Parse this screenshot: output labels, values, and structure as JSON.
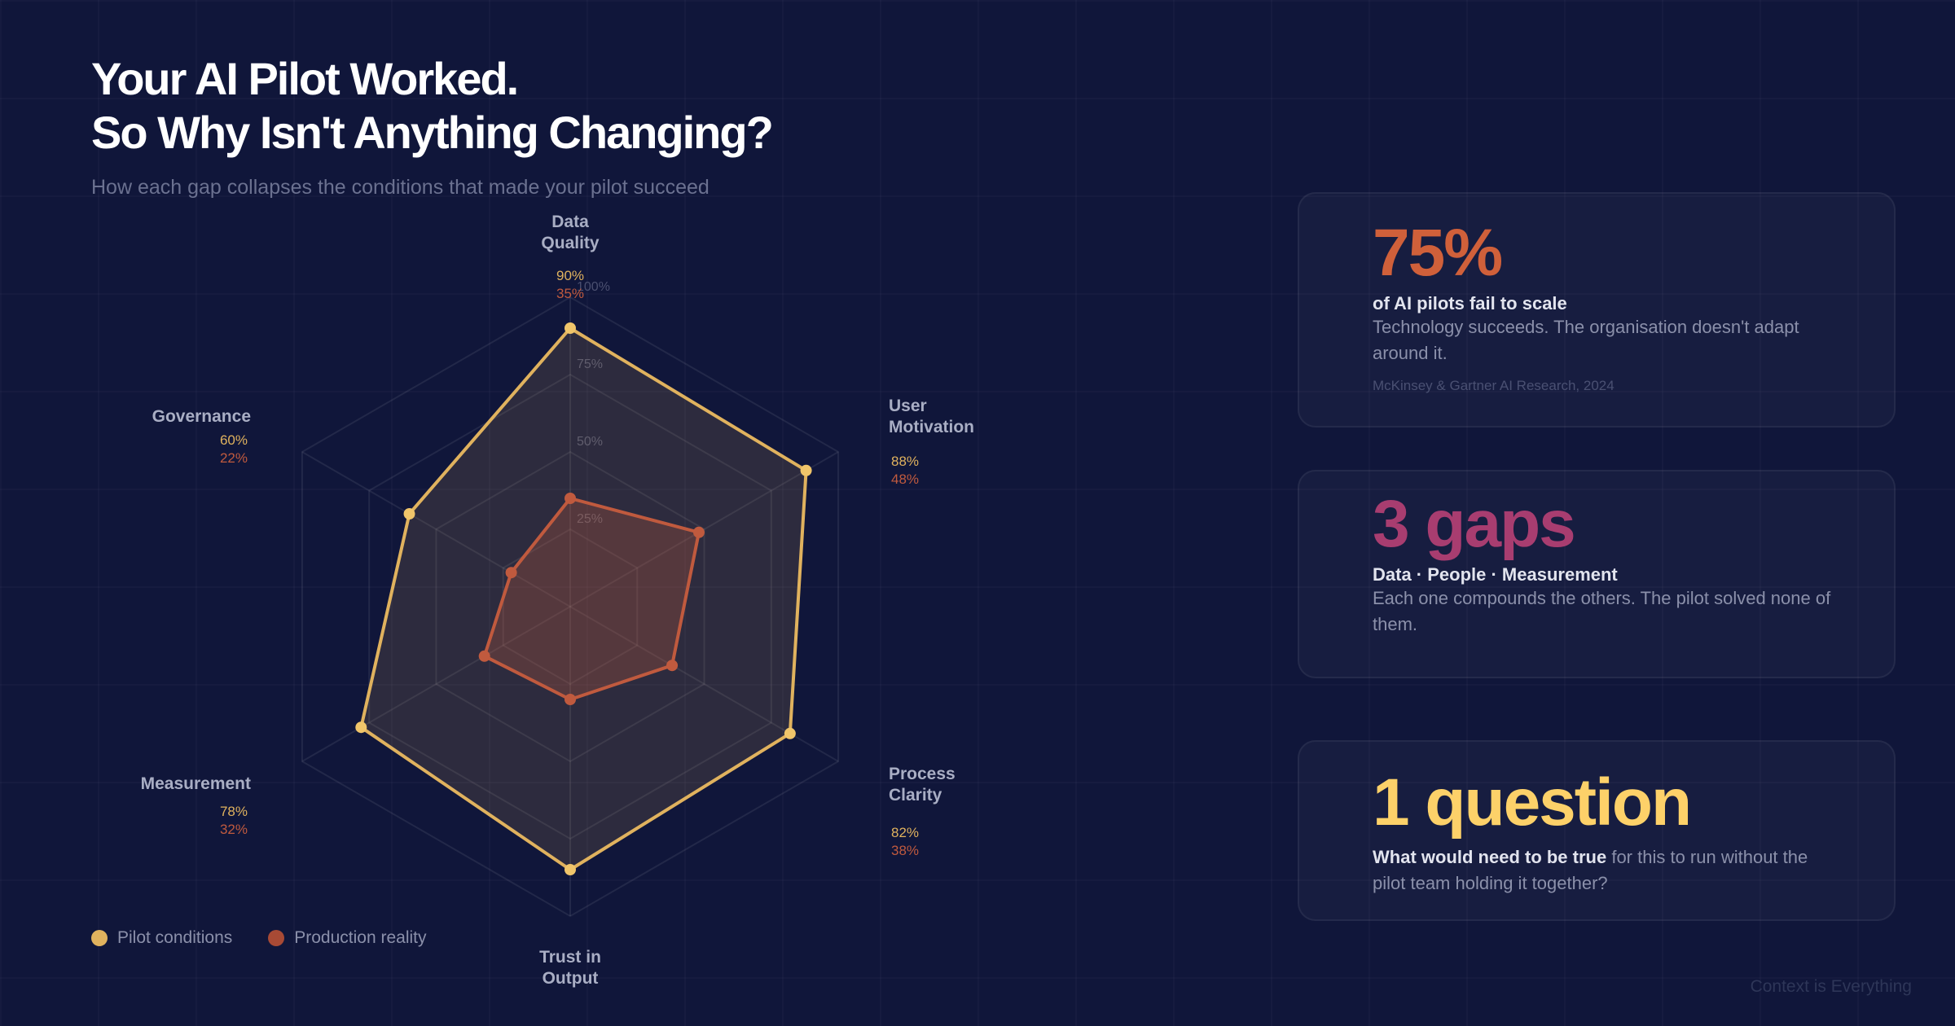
{
  "header": {
    "title_line1": "Your AI Pilot Worked.",
    "title_line2": "So Why Isn't Anything Changing?",
    "subtitle": "How each gap collapses the conditions that made your pilot succeed"
  },
  "chart_data": {
    "type": "radar",
    "title": "How each gap collapses the conditions that made your pilot succeed",
    "axes": [
      {
        "l1": "Data",
        "l2": "Quality"
      },
      {
        "l1": "User",
        "l2": "Motivation"
      },
      {
        "l1": "Process",
        "l2": "Clarity"
      },
      {
        "l1": "Trust in",
        "l2": "Output"
      },
      {
        "l1": "Measurement",
        "l2": ""
      },
      {
        "l1": "Governance",
        "l2": ""
      }
    ],
    "ring_ticks": [
      "25%",
      "50%",
      "75%",
      "100%"
    ],
    "range": [
      0,
      100
    ],
    "series": [
      {
        "name": "Pilot conditions",
        "color": "#e0b25e",
        "values": [
          90,
          88,
          82,
          85,
          78,
          60
        ],
        "labels": [
          "90%",
          "88%",
          "82%",
          "",
          "78%",
          "60%"
        ]
      },
      {
        "name": "Production reality",
        "color": "#c05a3e",
        "values": [
          35,
          48,
          38,
          30,
          32,
          22
        ],
        "labels": [
          "35%",
          "48%",
          "38%",
          "",
          "32%",
          "22%"
        ]
      }
    ],
    "legend": "bottom-left"
  },
  "cards": [
    {
      "big": "75%",
      "color": "#d0603a",
      "head": "of AI pilots fail to scale",
      "body": "Technology succeeds. The organisation doesn't adapt around it.",
      "source": "McKinsey & Gartner AI Research, 2024"
    },
    {
      "big": "3 gaps",
      "color": "#a83d70",
      "head": "Data · People · Measurement",
      "body": "Each one compounds the others. The pilot solved none of them."
    },
    {
      "big": "1 question",
      "color": "#fdd169",
      "head": "What would need to be true",
      "body": " for this to run without the pilot team holding it together?"
    }
  ],
  "footer": "Context is Everything"
}
